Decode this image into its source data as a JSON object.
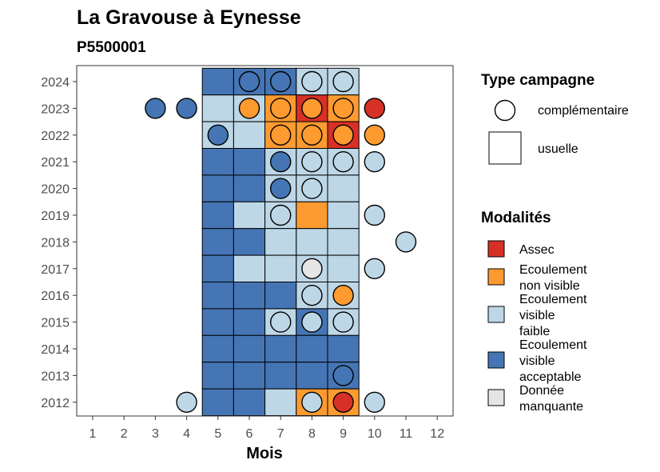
{
  "chart_data": {
    "type": "heatmap",
    "title": "La Gravouse à Eynesse",
    "subtitle": "P5500001",
    "xlabel": "Mois",
    "ylabel": "",
    "x_ticks": [
      "1",
      "2",
      "3",
      "4",
      "5",
      "6",
      "7",
      "8",
      "9",
      "10",
      "11",
      "12"
    ],
    "y_ticks": [
      "2012",
      "2013",
      "2014",
      "2015",
      "2016",
      "2017",
      "2018",
      "2019",
      "2020",
      "2021",
      "2022",
      "2023",
      "2024"
    ],
    "xlim": [
      0.5,
      12.5
    ],
    "ylim": [
      2011.5,
      2024.5
    ],
    "grid": false,
    "legend_placement": "right",
    "modalites": [
      {
        "key": "assec",
        "label": [
          "Assec"
        ],
        "color": "#d73027"
      },
      {
        "key": "nonvisible",
        "label": [
          "Ecoulement",
          "non visible"
        ],
        "color": "#fd9a30"
      },
      {
        "key": "faible",
        "label": [
          "Ecoulement",
          "visible",
          "faible"
        ],
        "color": "#bdd7e7"
      },
      {
        "key": "acceptable",
        "label": [
          "Ecoulement",
          "visible",
          "acceptable"
        ],
        "color": "#4575b4"
      },
      {
        "key": "manquante",
        "label": [
          "Donnée",
          "manquante"
        ],
        "color": "#e5e5e5"
      }
    ],
    "campaign_types": [
      {
        "key": "complementaire",
        "label": "complémentaire",
        "shape": "circle"
      },
      {
        "key": "usuelle",
        "label": "usuelle",
        "shape": "square"
      }
    ],
    "legend_titles": {
      "type": "Type campagne",
      "modalites": "Modalités"
    },
    "usuelle": [
      {
        "year": 2024,
        "month": 5,
        "m": "acceptable"
      },
      {
        "year": 2024,
        "month": 6,
        "m": "acceptable"
      },
      {
        "year": 2024,
        "month": 7,
        "m": "acceptable"
      },
      {
        "year": 2024,
        "month": 8,
        "m": "faible"
      },
      {
        "year": 2024,
        "month": 9,
        "m": "faible"
      },
      {
        "year": 2023,
        "month": 5,
        "m": "faible"
      },
      {
        "year": 2023,
        "month": 6,
        "m": "faible"
      },
      {
        "year": 2023,
        "month": 7,
        "m": "nonvisible"
      },
      {
        "year": 2023,
        "month": 8,
        "m": "assec"
      },
      {
        "year": 2023,
        "month": 9,
        "m": "nonvisible"
      },
      {
        "year": 2022,
        "month": 5,
        "m": "faible"
      },
      {
        "year": 2022,
        "month": 6,
        "m": "faible"
      },
      {
        "year": 2022,
        "month": 7,
        "m": "nonvisible"
      },
      {
        "year": 2022,
        "month": 8,
        "m": "nonvisible"
      },
      {
        "year": 2022,
        "month": 9,
        "m": "assec"
      },
      {
        "year": 2021,
        "month": 5,
        "m": "acceptable"
      },
      {
        "year": 2021,
        "month": 6,
        "m": "acceptable"
      },
      {
        "year": 2021,
        "month": 7,
        "m": "faible"
      },
      {
        "year": 2021,
        "month": 8,
        "m": "faible"
      },
      {
        "year": 2021,
        "month": 9,
        "m": "faible"
      },
      {
        "year": 2020,
        "month": 5,
        "m": "acceptable"
      },
      {
        "year": 2020,
        "month": 6,
        "m": "acceptable"
      },
      {
        "year": 2020,
        "month": 7,
        "m": "faible"
      },
      {
        "year": 2020,
        "month": 8,
        "m": "faible"
      },
      {
        "year": 2020,
        "month": 9,
        "m": "faible"
      },
      {
        "year": 2019,
        "month": 5,
        "m": "acceptable"
      },
      {
        "year": 2019,
        "month": 6,
        "m": "faible"
      },
      {
        "year": 2019,
        "month": 7,
        "m": "faible"
      },
      {
        "year": 2019,
        "month": 8,
        "m": "nonvisible"
      },
      {
        "year": 2019,
        "month": 9,
        "m": "faible"
      },
      {
        "year": 2018,
        "month": 5,
        "m": "acceptable"
      },
      {
        "year": 2018,
        "month": 6,
        "m": "acceptable"
      },
      {
        "year": 2018,
        "month": 7,
        "m": "faible"
      },
      {
        "year": 2018,
        "month": 8,
        "m": "faible"
      },
      {
        "year": 2018,
        "month": 9,
        "m": "faible"
      },
      {
        "year": 2017,
        "month": 5,
        "m": "acceptable"
      },
      {
        "year": 2017,
        "month": 6,
        "m": "faible"
      },
      {
        "year": 2017,
        "month": 7,
        "m": "faible"
      },
      {
        "year": 2017,
        "month": 8,
        "m": "faible"
      },
      {
        "year": 2017,
        "month": 9,
        "m": "faible"
      },
      {
        "year": 2016,
        "month": 5,
        "m": "acceptable"
      },
      {
        "year": 2016,
        "month": 6,
        "m": "acceptable"
      },
      {
        "year": 2016,
        "month": 7,
        "m": "acceptable"
      },
      {
        "year": 2016,
        "month": 8,
        "m": "faible"
      },
      {
        "year": 2016,
        "month": 9,
        "m": "faible"
      },
      {
        "year": 2015,
        "month": 5,
        "m": "acceptable"
      },
      {
        "year": 2015,
        "month": 6,
        "m": "acceptable"
      },
      {
        "year": 2015,
        "month": 7,
        "m": "faible"
      },
      {
        "year": 2015,
        "month": 8,
        "m": "acceptable"
      },
      {
        "year": 2015,
        "month": 9,
        "m": "faible"
      },
      {
        "year": 2014,
        "month": 5,
        "m": "acceptable"
      },
      {
        "year": 2014,
        "month": 6,
        "m": "acceptable"
      },
      {
        "year": 2014,
        "month": 7,
        "m": "acceptable"
      },
      {
        "year": 2014,
        "month": 8,
        "m": "acceptable"
      },
      {
        "year": 2014,
        "month": 9,
        "m": "acceptable"
      },
      {
        "year": 2013,
        "month": 5,
        "m": "acceptable"
      },
      {
        "year": 2013,
        "month": 6,
        "m": "acceptable"
      },
      {
        "year": 2013,
        "month": 7,
        "m": "acceptable"
      },
      {
        "year": 2013,
        "month": 8,
        "m": "acceptable"
      },
      {
        "year": 2013,
        "month": 9,
        "m": "acceptable"
      },
      {
        "year": 2012,
        "month": 5,
        "m": "acceptable"
      },
      {
        "year": 2012,
        "month": 6,
        "m": "acceptable"
      },
      {
        "year": 2012,
        "month": 7,
        "m": "faible"
      },
      {
        "year": 2012,
        "month": 8,
        "m": "nonvisible"
      },
      {
        "year": 2012,
        "month": 9,
        "m": "nonvisible"
      }
    ],
    "complementaire": [
      {
        "year": 2024,
        "month": 6,
        "m": "acceptable"
      },
      {
        "year": 2024,
        "month": 7,
        "m": "acceptable"
      },
      {
        "year": 2024,
        "month": 8,
        "m": "faible"
      },
      {
        "year": 2024,
        "month": 9,
        "m": "faible"
      },
      {
        "year": 2023,
        "month": 3,
        "m": "acceptable"
      },
      {
        "year": 2023,
        "month": 4,
        "m": "acceptable"
      },
      {
        "year": 2023,
        "month": 6,
        "m": "nonvisible"
      },
      {
        "year": 2023,
        "month": 7,
        "m": "nonvisible"
      },
      {
        "year": 2023,
        "month": 8,
        "m": "nonvisible"
      },
      {
        "year": 2023,
        "month": 9,
        "m": "nonvisible"
      },
      {
        "year": 2023,
        "month": 10,
        "m": "assec"
      },
      {
        "year": 2022,
        "month": 5,
        "m": "acceptable"
      },
      {
        "year": 2022,
        "month": 7,
        "m": "nonvisible"
      },
      {
        "year": 2022,
        "month": 8,
        "m": "nonvisible"
      },
      {
        "year": 2022,
        "month": 9,
        "m": "nonvisible"
      },
      {
        "year": 2022,
        "month": 10,
        "m": "nonvisible"
      },
      {
        "year": 2021,
        "month": 7,
        "m": "acceptable"
      },
      {
        "year": 2021,
        "month": 8,
        "m": "faible"
      },
      {
        "year": 2021,
        "month": 9,
        "m": "faible"
      },
      {
        "year": 2021,
        "month": 10,
        "m": "faible"
      },
      {
        "year": 2020,
        "month": 7,
        "m": "acceptable"
      },
      {
        "year": 2020,
        "month": 8,
        "m": "faible"
      },
      {
        "year": 2019,
        "month": 7,
        "m": "faible"
      },
      {
        "year": 2019,
        "month": 10,
        "m": "faible"
      },
      {
        "year": 2018,
        "month": 11,
        "m": "faible"
      },
      {
        "year": 2017,
        "month": 8,
        "m": "manquante"
      },
      {
        "year": 2017,
        "month": 10,
        "m": "faible"
      },
      {
        "year": 2016,
        "month": 8,
        "m": "faible"
      },
      {
        "year": 2016,
        "month": 9,
        "m": "nonvisible"
      },
      {
        "year": 2015,
        "month": 7,
        "m": "faible"
      },
      {
        "year": 2015,
        "month": 8,
        "m": "faible"
      },
      {
        "year": 2015,
        "month": 9,
        "m": "faible"
      },
      {
        "year": 2013,
        "month": 9,
        "m": "acceptable"
      },
      {
        "year": 2012,
        "month": 4,
        "m": "faible"
      },
      {
        "year": 2012,
        "month": 8,
        "m": "faible"
      },
      {
        "year": 2012,
        "month": 9,
        "m": "assec"
      },
      {
        "year": 2012,
        "month": 10,
        "m": "faible"
      }
    ]
  }
}
